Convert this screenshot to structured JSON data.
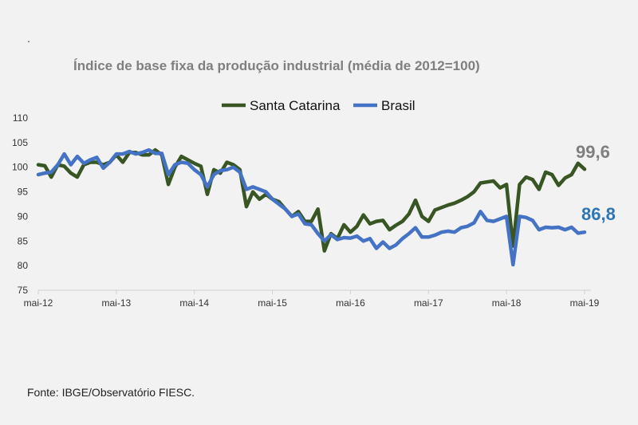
{
  "header": {
    "mark": "."
  },
  "chart_data": {
    "type": "line",
    "title": "Índice de base fixa da produção industrial (média de 2012=100)",
    "xlabel": "",
    "ylabel": "",
    "ylim": [
      75,
      110
    ],
    "yticks": [
      "75",
      "80",
      "85",
      "90",
      "95",
      "100",
      "105",
      "110"
    ],
    "xticks": [
      "mai-12",
      "mai-13",
      "mai-14",
      "mai-15",
      "mai-16",
      "mai-17",
      "mai-18",
      "mai-19"
    ],
    "x_start": "mai-12",
    "x_end": "mai-19",
    "grid": false,
    "legend_position": "top",
    "series": [
      {
        "name": "Santa Catarina",
        "color": "#375623",
        "end_label": "99,6",
        "end_label_color": "#7f7f7f",
        "values": [
          100.5,
          100.3,
          98,
          100.5,
          100.2,
          98.8,
          98,
          100.5,
          101,
          101,
          100.5,
          101,
          102.5,
          101,
          103,
          103,
          102.5,
          102.5,
          103.5,
          102.5,
          96.5,
          100,
          102.2,
          101.5,
          100.8,
          100.2,
          94.5,
          99.5,
          98.8,
          101,
          100.5,
          99.5,
          92,
          95,
          93.5,
          94.5,
          93.5,
          93,
          91.5,
          90,
          91,
          89,
          89,
          91.5,
          83,
          86.5,
          85.5,
          88.3,
          86.8,
          88,
          90.3,
          88.5,
          89,
          89.2,
          87.3,
          88.2,
          89,
          90.5,
          93.3,
          90,
          89,
          91.3,
          91.8,
          92.3,
          92.7,
          93.3,
          94,
          95,
          96.8,
          97,
          97.2,
          95.8,
          96.5,
          84,
          96.5,
          98,
          97.5,
          95.5,
          99,
          98.5,
          96.3,
          97.8,
          98.5,
          100.8,
          99.6
        ]
      },
      {
        "name": "Brasil",
        "color": "#4472c4",
        "end_label": "86,8",
        "end_label_color": "#2e75b6",
        "values": [
          98.5,
          98.8,
          99,
          100.5,
          102.7,
          100.5,
          102.2,
          100.8,
          101.5,
          102,
          99.8,
          101,
          102.7,
          102.7,
          103.2,
          102.7,
          103,
          103.5,
          102.8,
          102.8,
          98.5,
          100.5,
          101,
          100.8,
          99.5,
          98.5,
          96,
          98.5,
          99.3,
          99.5,
          100,
          99,
          95.5,
          96,
          95.5,
          95,
          93.5,
          92.5,
          91.5,
          90,
          90.5,
          88.5,
          88.3,
          86.5,
          85,
          86.3,
          85.3,
          85.7,
          85.6,
          86,
          85,
          85.5,
          83.5,
          84.8,
          83.5,
          84.2,
          85.5,
          86.5,
          87.7,
          85.8,
          85.8,
          86.2,
          86.8,
          87,
          86.8,
          87.7,
          88,
          88.7,
          91,
          89.2,
          89,
          89.5,
          90,
          80.2,
          90,
          89.8,
          89.2,
          87.3,
          87.8,
          87.7,
          87.8,
          87.3,
          87.8,
          86.6,
          86.8
        ]
      }
    ]
  },
  "footer": {
    "source": "Fonte: IBGE/Observatório FIESC."
  }
}
